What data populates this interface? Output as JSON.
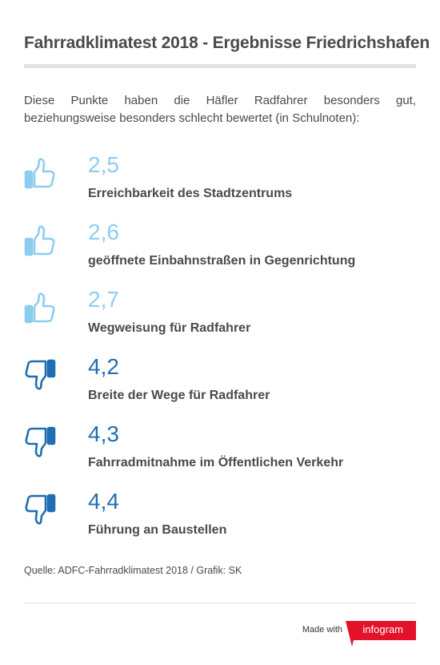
{
  "title": "Fahrradklimatest 2018 - Ergebnisse Friedrichshafen",
  "intro": "Diese Punkte haben die Häfler Radfahrer besonders gut, beziehungsweise besonders schlecht bewertet (in Schulnoten):",
  "colors": {
    "good": "#8dcdf0",
    "bad": "#1f6fb2",
    "brand": "#e4112a"
  },
  "items": [
    {
      "grade": "2,5",
      "label": "Erreichbarkeit des Stadtzentrums",
      "rating": "good",
      "icon": "thumbs-up-icon"
    },
    {
      "grade": "2,6",
      "label": "geöffnete Einbahnstraßen in Gegenrichtung",
      "rating": "good",
      "icon": "thumbs-up-icon"
    },
    {
      "grade": "2,7",
      "label": "Wegweisung für Radfahrer",
      "rating": "good",
      "icon": "thumbs-up-icon"
    },
    {
      "grade": "4,2",
      "label": "Breite der Wege für Radfahrer",
      "rating": "bad",
      "icon": "thumbs-down-icon"
    },
    {
      "grade": "4,3",
      "label": "Fahrradmitnahme im Öffentlichen Verkehr",
      "rating": "bad",
      "icon": "thumbs-down-icon"
    },
    {
      "grade": "4,4",
      "label": "Führung an Baustellen",
      "rating": "bad",
      "icon": "thumbs-down-icon"
    }
  ],
  "source": "Quelle: ADFC-Fahrradklimatest 2018 / Grafik: SK",
  "footer": {
    "made_with": "Made with",
    "brand": "infogram"
  }
}
